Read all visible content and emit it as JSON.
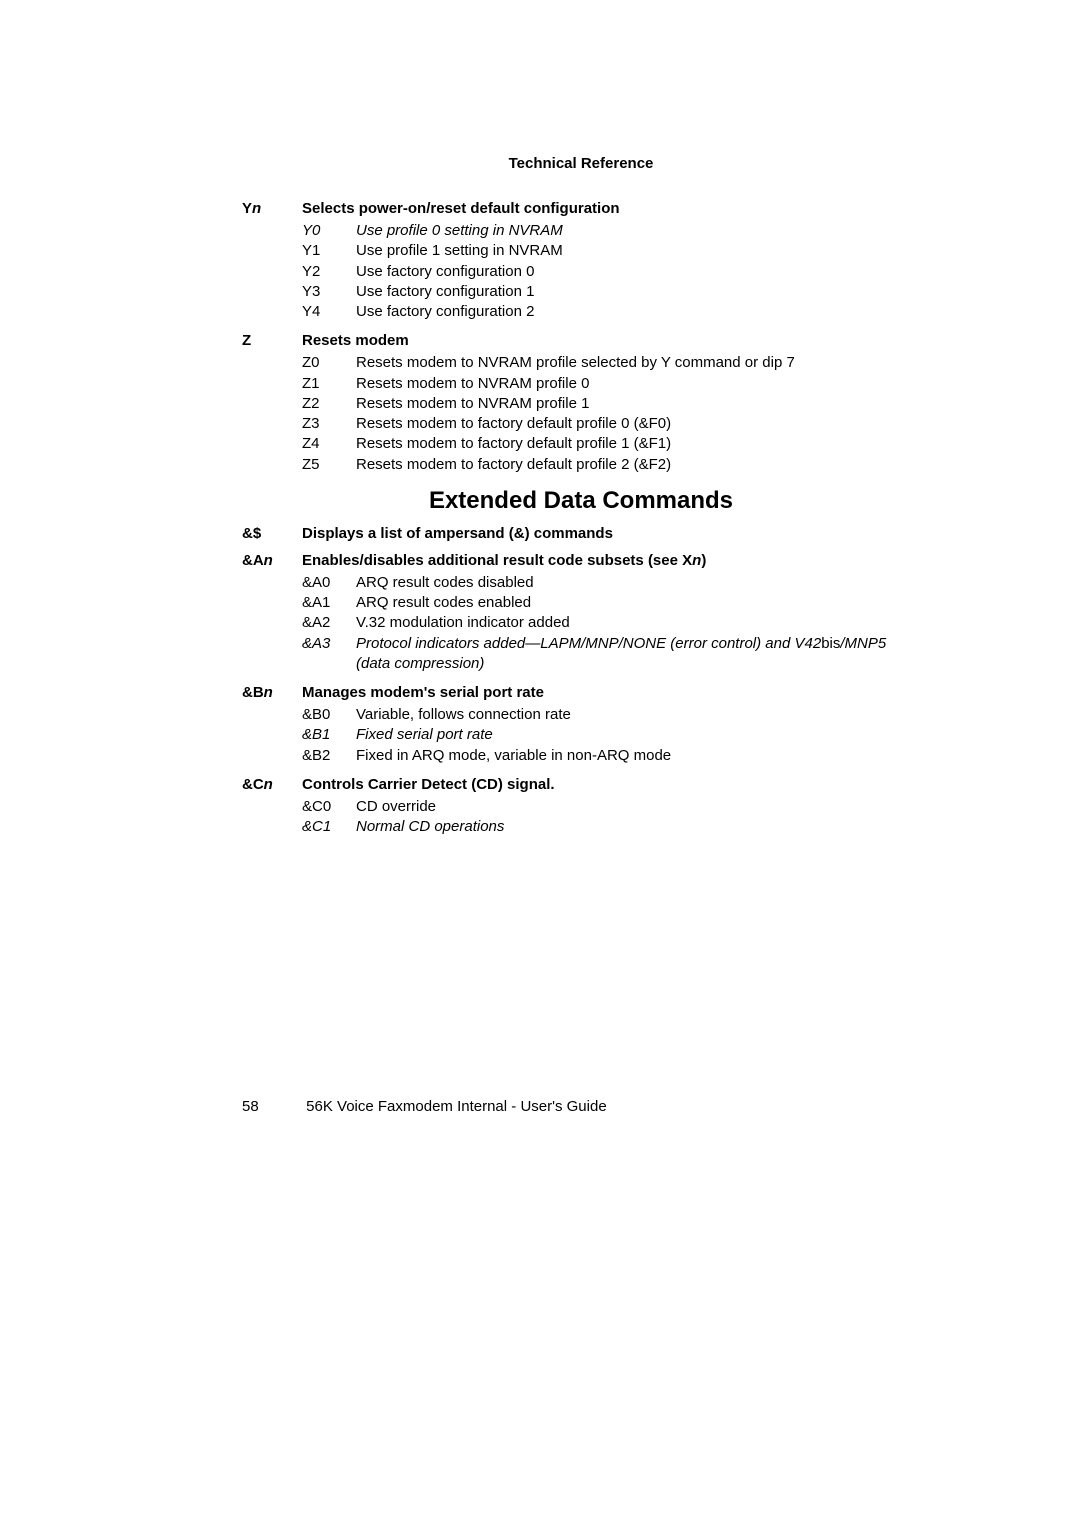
{
  "header": "Technical Reference",
  "commands": [
    {
      "label_plain": "Y",
      "label_italic": "n",
      "title_pre": "Selects power-on/reset default configuration",
      "title_italic": "",
      "title_post": "",
      "options": [
        {
          "code": "Y0",
          "desc": "Use profile 0 setting in NVRAM",
          "italic": true
        },
        {
          "code": "Y1",
          "desc": "Use profile 1 setting in NVRAM",
          "italic": false
        },
        {
          "code": "Y2",
          "desc": "Use factory configuration 0",
          "italic": false
        },
        {
          "code": "Y3",
          "desc": "Use factory configuration 1",
          "italic": false
        },
        {
          "code": "Y4",
          "desc": "Use factory configuration 2",
          "italic": false
        }
      ]
    },
    {
      "label_plain": "Z",
      "label_italic": "",
      "title_pre": "Resets modem",
      "title_italic": "",
      "title_post": "",
      "options": [
        {
          "code": "Z0",
          "desc": "Resets modem to NVRAM profile selected by Y command or dip 7",
          "italic": false
        },
        {
          "code": "Z1",
          "desc": "Resets modem to NVRAM profile 0",
          "italic": false
        },
        {
          "code": "Z2",
          "desc": "Resets modem to NVRAM profile 1",
          "italic": false
        },
        {
          "code": "Z3",
          "desc": "Resets modem to factory default profile 0 (&F0)",
          "italic": false
        },
        {
          "code": "Z4",
          "desc": "Resets modem to factory default profile 1 (&F1)",
          "italic": false
        },
        {
          "code": "Z5",
          "desc": "Resets modem to factory default profile 2 (&F2)",
          "italic": false
        }
      ]
    }
  ],
  "section_heading": "Extended Data Commands",
  "ext_commands": [
    {
      "label_plain": "&$",
      "label_italic": "",
      "title_pre": "Displays a list of ampersand (&) commands",
      "title_italic": "",
      "title_post": "",
      "options": []
    },
    {
      "label_plain": "&A",
      "label_italic": "n",
      "title_pre": "Enables/disables additional result code subsets (see X",
      "title_italic": "n",
      "title_post": ")",
      "options": [
        {
          "code": "&A0",
          "desc": "ARQ result codes disabled",
          "italic": false
        },
        {
          "code": "&A1",
          "desc": "ARQ result codes enabled",
          "italic": false
        },
        {
          "code": "&A2",
          "desc": "V.32 modulation indicator added",
          "italic": false
        },
        {
          "code": "&A3",
          "desc_pre": "Protocol indicators added—LAPM/MNP/NONE (error control) and V42",
          "desc_mid": "bis",
          "desc_post": "/MNP5 (data compression)",
          "italic": true,
          "mixed": true
        }
      ]
    },
    {
      "label_plain": "&B",
      "label_italic": "n",
      "title_pre": "Manages modem's serial port rate",
      "title_italic": "",
      "title_post": "",
      "options": [
        {
          "code": "&B0",
          "desc": "Variable, follows connection rate",
          "italic": false
        },
        {
          "code": "&B1",
          "desc": "Fixed serial port rate",
          "italic": true
        },
        {
          "code": "&B2",
          "desc": "Fixed in ARQ mode, variable in non-ARQ mode",
          "italic": false
        }
      ]
    },
    {
      "label_plain": "&C",
      "label_italic": "n",
      "title_pre": "Controls Carrier Detect (CD) signal.",
      "title_italic": "",
      "title_post": "",
      "options": [
        {
          "code": "&C0",
          "desc": "CD override",
          "italic": false
        },
        {
          "code": "&C1",
          "desc": "Normal CD operations",
          "italic": true
        }
      ]
    }
  ],
  "footer": {
    "page_number": "58",
    "text": "56K Voice Faxmodem Internal - User's Guide"
  }
}
